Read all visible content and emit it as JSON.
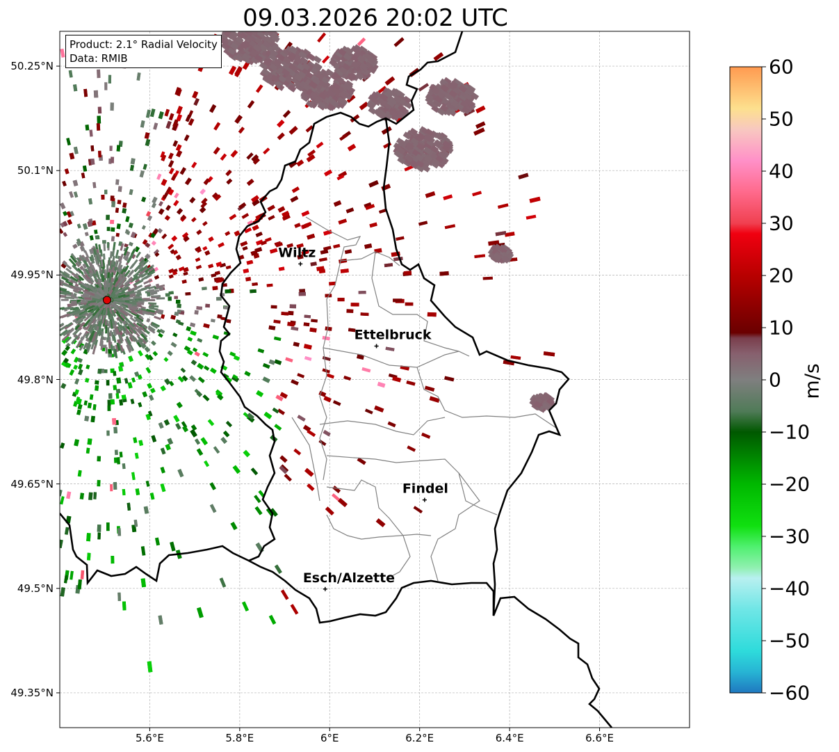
{
  "title": "09.03.2026 20:02 UTC",
  "info": {
    "product": "Product: 2.1° Radial Velocity",
    "source": "Data: RMIB"
  },
  "axes": {
    "lon_range": [
      5.4,
      6.8
    ],
    "lat_range": [
      49.3,
      50.3
    ],
    "lat_ticks": [
      {
        "value": 50.25,
        "label": "50.25°N"
      },
      {
        "value": 50.1,
        "label": "50.1°N"
      },
      {
        "value": 49.95,
        "label": "49.95°N"
      },
      {
        "value": 49.8,
        "label": "49.8°N"
      },
      {
        "value": 49.65,
        "label": "49.65°N"
      },
      {
        "value": 49.5,
        "label": "49.5°N"
      },
      {
        "value": 49.35,
        "label": "49.35°N"
      }
    ],
    "lon_ticks": [
      {
        "value": 5.6,
        "label": "5.6°E"
      },
      {
        "value": 5.8,
        "label": "5.8°E"
      },
      {
        "value": 6.0,
        "label": "6°E"
      },
      {
        "value": 6.2,
        "label": "6.2°E"
      },
      {
        "value": 6.4,
        "label": "6.4°E"
      },
      {
        "value": 6.6,
        "label": "6.6°E"
      }
    ]
  },
  "radar_site": {
    "lon": 5.505,
    "lat": 49.914,
    "color": "#e00000"
  },
  "cities": [
    {
      "name": "Wiltz",
      "lon": 5.935,
      "lat": 49.966
    },
    {
      "name": "Ettelbruck",
      "lon": 6.104,
      "lat": 49.848
    },
    {
      "name": "Findel",
      "lon": 6.211,
      "lat": 49.627
    },
    {
      "name": "Esch/Alzette",
      "lon": 5.99,
      "lat": 49.499
    }
  ],
  "colorbar": {
    "label": "m/s",
    "range": [
      -60,
      60
    ],
    "ticks": [
      {
        "value": 60,
        "label": "60"
      },
      {
        "value": 50,
        "label": "50"
      },
      {
        "value": 40,
        "label": "40"
      },
      {
        "value": 30,
        "label": "30"
      },
      {
        "value": 20,
        "label": "20"
      },
      {
        "value": 10,
        "label": "10"
      },
      {
        "value": 0,
        "label": "0"
      },
      {
        "value": -10,
        "label": "−10"
      },
      {
        "value": -20,
        "label": "−20"
      },
      {
        "value": -30,
        "label": "−30"
      },
      {
        "value": -40,
        "label": "−40"
      },
      {
        "value": -50,
        "label": "−50"
      },
      {
        "value": -60,
        "label": "−60"
      }
    ],
    "stops": [
      {
        "value": -60,
        "color": "#1f78c0"
      },
      {
        "value": -56,
        "color": "#27b4d4"
      },
      {
        "value": -52,
        "color": "#2edbdb"
      },
      {
        "value": -44,
        "color": "#6fe6e6"
      },
      {
        "value": -38,
        "color": "#b8f0f0"
      },
      {
        "value": -36,
        "color": "#90f0b0"
      },
      {
        "value": -32,
        "color": "#50f070"
      },
      {
        "value": -28,
        "color": "#10e010"
      },
      {
        "value": -20,
        "color": "#00b800"
      },
      {
        "value": -10,
        "color": "#005800"
      },
      {
        "value": -6,
        "color": "#507b58"
      },
      {
        "value": 0,
        "color": "#7f7f7f"
      },
      {
        "value": 5,
        "color": "#87606e"
      },
      {
        "value": 8,
        "color": "#7a3e4c"
      },
      {
        "value": 9,
        "color": "#6a0000"
      },
      {
        "value": 20,
        "color": "#b80000"
      },
      {
        "value": 28,
        "color": "#f00010"
      },
      {
        "value": 30,
        "color": "#f04050"
      },
      {
        "value": 36,
        "color": "#ff6a8c"
      },
      {
        "value": 42,
        "color": "#ff90c8"
      },
      {
        "value": 48,
        "color": "#f8c8c0"
      },
      {
        "value": 52,
        "color": "#fde08e"
      },
      {
        "value": 60,
        "color": "#ff9a50"
      }
    ]
  }
}
